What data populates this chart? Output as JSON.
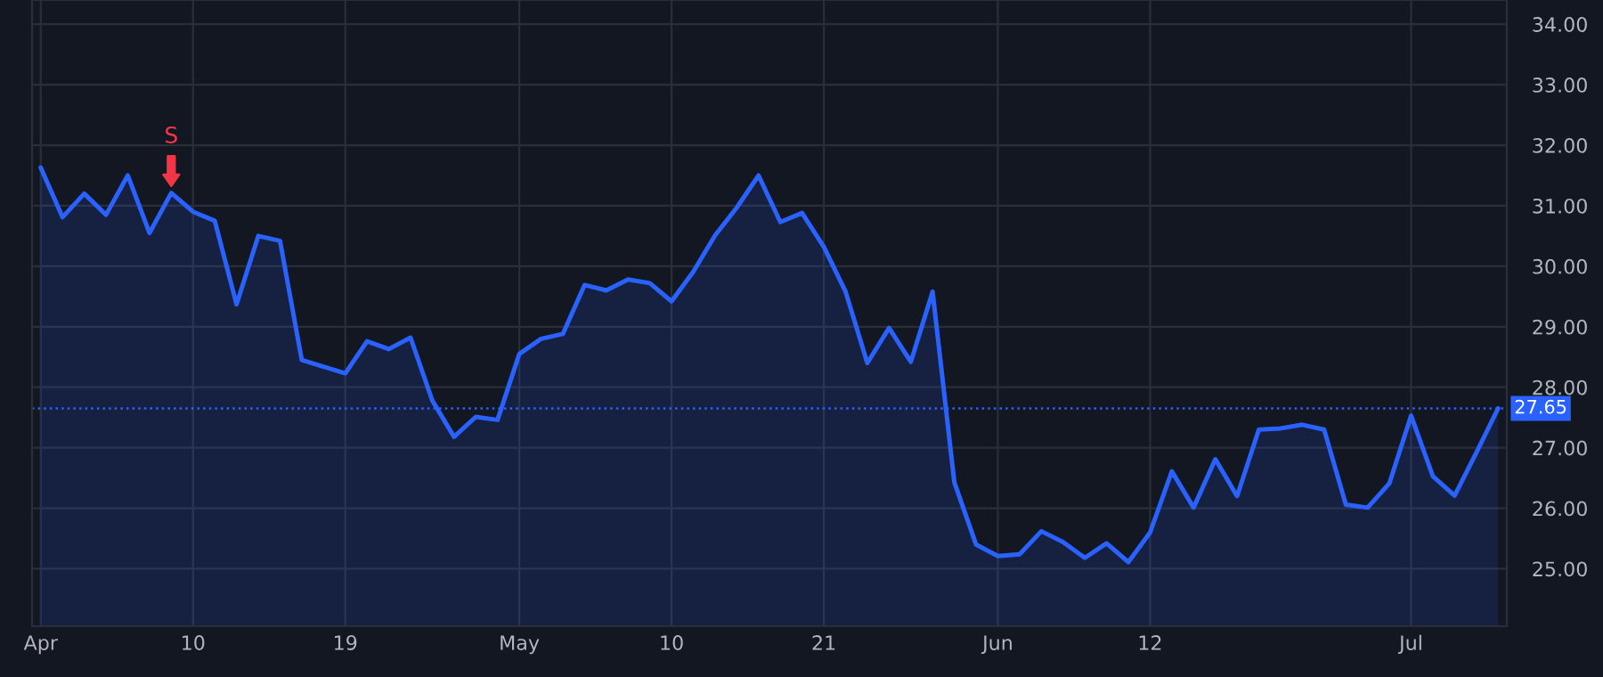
{
  "chart_data": {
    "type": "area",
    "categories": [
      "Apr",
      null,
      null,
      null,
      null,
      null,
      null,
      "10",
      null,
      null,
      null,
      null,
      null,
      null,
      "19",
      null,
      null,
      null,
      null,
      null,
      null,
      null,
      "May",
      null,
      null,
      null,
      null,
      null,
      null,
      "10",
      null,
      null,
      null,
      null,
      null,
      null,
      "21",
      null,
      null,
      null,
      null,
      null,
      null,
      null,
      "Jun",
      null,
      null,
      null,
      null,
      null,
      null,
      "12",
      null,
      null,
      null,
      null,
      null,
      null,
      null,
      null,
      null,
      null,
      null,
      "Jul",
      null,
      null,
      null,
      null
    ],
    "series": [
      {
        "color": "#2962ff",
        "values": [
          31.63,
          30.81,
          31.2,
          30.85,
          31.5,
          30.55,
          31.21,
          30.9,
          30.75,
          29.37,
          30.5,
          30.42,
          28.45,
          28.34,
          28.23,
          28.76,
          28.63,
          28.82,
          27.78,
          27.18,
          27.51,
          27.46,
          28.55,
          28.8,
          28.88,
          29.69,
          29.6,
          29.78,
          29.72,
          29.42,
          29.91,
          30.51,
          30.97,
          31.5,
          30.73,
          30.88,
          30.32,
          29.58,
          28.4,
          28.98,
          28.42,
          29.58,
          26.43,
          25.4,
          25.21,
          25.24,
          25.62,
          25.44,
          25.18,
          25.42,
          25.11,
          25.6,
          26.61,
          26.01,
          26.81,
          26.2,
          27.3,
          27.32,
          27.38,
          27.3,
          26.06,
          26.01,
          26.41,
          27.53,
          26.53,
          26.21,
          26.92,
          27.65
        ]
      }
    ],
    "ylim": [
      24.05,
      34.4
    ],
    "yticks": [
      {
        "value": 25,
        "label": "25.00"
      },
      {
        "value": 26,
        "label": "26.00"
      },
      {
        "value": 27,
        "label": "27.00"
      },
      {
        "value": 28,
        "label": "28.00"
      },
      {
        "value": 29,
        "label": "29.00"
      },
      {
        "value": 30,
        "label": "30.00"
      },
      {
        "value": 31,
        "label": "31.00"
      },
      {
        "value": 32,
        "label": "32.00"
      },
      {
        "value": 33,
        "label": "33.00"
      },
      {
        "value": 34,
        "label": "34.00"
      }
    ],
    "ref_lines": [
      {
        "axis": "y",
        "value": 27.65,
        "label": "27.65",
        "color": "#2962ff",
        "line_style": "dotted"
      }
    ],
    "annotations": [
      {
        "text": "S",
        "y": 31.21
      }
    ],
    "grid": true,
    "legend": false
  }
}
